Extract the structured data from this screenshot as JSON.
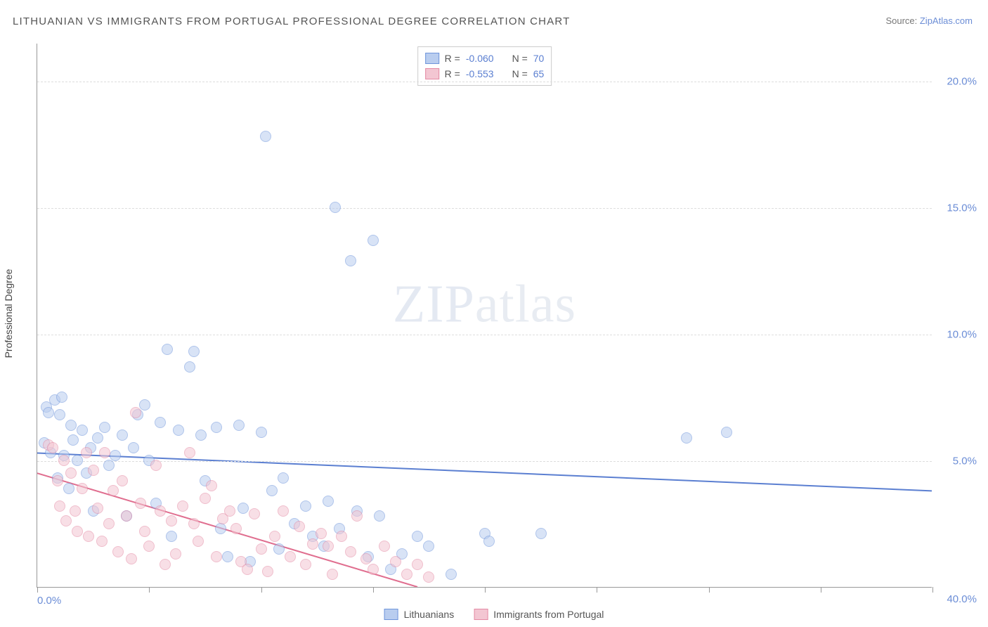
{
  "title": "LITHUANIAN VS IMMIGRANTS FROM PORTUGAL PROFESSIONAL DEGREE CORRELATION CHART",
  "source_label": "Source: ",
  "source_name": "ZipAtlas.com",
  "y_axis_label": "Professional Degree",
  "watermark_a": "ZIP",
  "watermark_b": "atlas",
  "chart": {
    "type": "scatter",
    "xlim": [
      0,
      40
    ],
    "ylim": [
      0,
      21.5
    ],
    "x_label_min": "0.0%",
    "x_label_max": "40.0%",
    "y_ticks": [
      5,
      10,
      15,
      20
    ],
    "y_tick_labels": [
      "5.0%",
      "10.0%",
      "15.0%",
      "20.0%"
    ],
    "x_ticks": [
      0,
      5,
      10,
      15,
      20,
      25,
      30,
      35,
      40
    ],
    "background_color": "#ffffff",
    "grid_color": "#dddddd",
    "axis_color": "#999999",
    "marker_radius": 8,
    "marker_opacity": 0.55,
    "series": [
      {
        "name": "Lithuanians",
        "fill": "#b9cdef",
        "stroke": "#6f95db",
        "line_color": "#5b7fd1",
        "line_width": 2,
        "R": "-0.060",
        "N": "70",
        "regression": {
          "x1": 0,
          "y1": 5.3,
          "x2": 40,
          "y2": 3.8
        },
        "points": [
          [
            0.3,
            5.7
          ],
          [
            0.4,
            7.1
          ],
          [
            0.5,
            6.9
          ],
          [
            0.6,
            5.3
          ],
          [
            0.8,
            7.4
          ],
          [
            0.9,
            4.3
          ],
          [
            1.0,
            6.8
          ],
          [
            1.1,
            7.5
          ],
          [
            1.2,
            5.2
          ],
          [
            1.4,
            3.9
          ],
          [
            1.5,
            6.4
          ],
          [
            1.6,
            5.8
          ],
          [
            1.8,
            5.0
          ],
          [
            2.0,
            6.2
          ],
          [
            2.2,
            4.5
          ],
          [
            2.4,
            5.5
          ],
          [
            2.5,
            3.0
          ],
          [
            2.7,
            5.9
          ],
          [
            3.0,
            6.3
          ],
          [
            3.2,
            4.8
          ],
          [
            3.5,
            5.2
          ],
          [
            3.8,
            6.0
          ],
          [
            4.0,
            2.8
          ],
          [
            4.3,
            5.5
          ],
          [
            4.5,
            6.8
          ],
          [
            4.8,
            7.2
          ],
          [
            5.0,
            5.0
          ],
          [
            5.3,
            3.3
          ],
          [
            5.5,
            6.5
          ],
          [
            5.8,
            9.4
          ],
          [
            6.0,
            2.0
          ],
          [
            6.3,
            6.2
          ],
          [
            6.8,
            8.7
          ],
          [
            7.0,
            9.3
          ],
          [
            7.3,
            6.0
          ],
          [
            7.5,
            4.2
          ],
          [
            8.0,
            6.3
          ],
          [
            8.2,
            2.3
          ],
          [
            8.5,
            1.2
          ],
          [
            9.0,
            6.4
          ],
          [
            9.2,
            3.1
          ],
          [
            9.5,
            1.0
          ],
          [
            10.0,
            6.1
          ],
          [
            10.2,
            17.8
          ],
          [
            10.5,
            3.8
          ],
          [
            10.8,
            1.5
          ],
          [
            11.0,
            4.3
          ],
          [
            11.5,
            2.5
          ],
          [
            12.0,
            3.2
          ],
          [
            12.3,
            2.0
          ],
          [
            12.8,
            1.6
          ],
          [
            13.0,
            3.4
          ],
          [
            13.3,
            15.0
          ],
          [
            13.5,
            2.3
          ],
          [
            14.0,
            12.9
          ],
          [
            14.3,
            3.0
          ],
          [
            14.8,
            1.2
          ],
          [
            15.0,
            13.7
          ],
          [
            15.3,
            2.8
          ],
          [
            15.8,
            0.7
          ],
          [
            16.3,
            1.3
          ],
          [
            17.0,
            2.0
          ],
          [
            17.5,
            1.6
          ],
          [
            18.5,
            0.5
          ],
          [
            20.0,
            2.1
          ],
          [
            20.2,
            1.8
          ],
          [
            22.5,
            2.1
          ],
          [
            29.0,
            5.9
          ],
          [
            30.8,
            6.1
          ]
        ]
      },
      {
        "name": "Immigrants from Portugal",
        "fill": "#f3c6d2",
        "stroke": "#e48aa4",
        "line_color": "#e06e8f",
        "line_width": 2,
        "R": "-0.553",
        "N": "65",
        "regression": {
          "x1": 0,
          "y1": 4.5,
          "x2": 17,
          "y2": 0
        },
        "points": [
          [
            0.5,
            5.6
          ],
          [
            0.7,
            5.5
          ],
          [
            0.9,
            4.2
          ],
          [
            1.0,
            3.2
          ],
          [
            1.2,
            5.0
          ],
          [
            1.3,
            2.6
          ],
          [
            1.5,
            4.5
          ],
          [
            1.7,
            3.0
          ],
          [
            1.8,
            2.2
          ],
          [
            2.0,
            3.9
          ],
          [
            2.2,
            5.3
          ],
          [
            2.3,
            2.0
          ],
          [
            2.5,
            4.6
          ],
          [
            2.7,
            3.1
          ],
          [
            2.9,
            1.8
          ],
          [
            3.0,
            5.3
          ],
          [
            3.2,
            2.5
          ],
          [
            3.4,
            3.8
          ],
          [
            3.6,
            1.4
          ],
          [
            3.8,
            4.2
          ],
          [
            4.0,
            2.8
          ],
          [
            4.2,
            1.1
          ],
          [
            4.4,
            6.9
          ],
          [
            4.6,
            3.3
          ],
          [
            4.8,
            2.2
          ],
          [
            5.0,
            1.6
          ],
          [
            5.3,
            4.8
          ],
          [
            5.5,
            3.0
          ],
          [
            5.7,
            0.9
          ],
          [
            6.0,
            2.6
          ],
          [
            6.2,
            1.3
          ],
          [
            6.5,
            3.2
          ],
          [
            6.8,
            5.3
          ],
          [
            7.0,
            2.5
          ],
          [
            7.2,
            1.8
          ],
          [
            7.5,
            3.5
          ],
          [
            7.8,
            4.0
          ],
          [
            8.0,
            1.2
          ],
          [
            8.3,
            2.7
          ],
          [
            8.6,
            3.0
          ],
          [
            8.9,
            2.3
          ],
          [
            9.1,
            1.0
          ],
          [
            9.4,
            0.7
          ],
          [
            9.7,
            2.9
          ],
          [
            10.0,
            1.5
          ],
          [
            10.3,
            0.6
          ],
          [
            10.6,
            2.0
          ],
          [
            11.0,
            3.0
          ],
          [
            11.3,
            1.2
          ],
          [
            11.7,
            2.4
          ],
          [
            12.0,
            0.9
          ],
          [
            12.3,
            1.7
          ],
          [
            12.7,
            2.1
          ],
          [
            13.0,
            1.6
          ],
          [
            13.2,
            0.5
          ],
          [
            13.6,
            2.0
          ],
          [
            14.0,
            1.4
          ],
          [
            14.3,
            2.8
          ],
          [
            14.7,
            1.1
          ],
          [
            15.0,
            0.7
          ],
          [
            15.5,
            1.6
          ],
          [
            16.0,
            1.0
          ],
          [
            16.5,
            0.5
          ],
          [
            17.0,
            0.9
          ],
          [
            17.5,
            0.4
          ]
        ]
      }
    ]
  },
  "stats_legend_labels": {
    "R": "R =",
    "N": "N ="
  }
}
